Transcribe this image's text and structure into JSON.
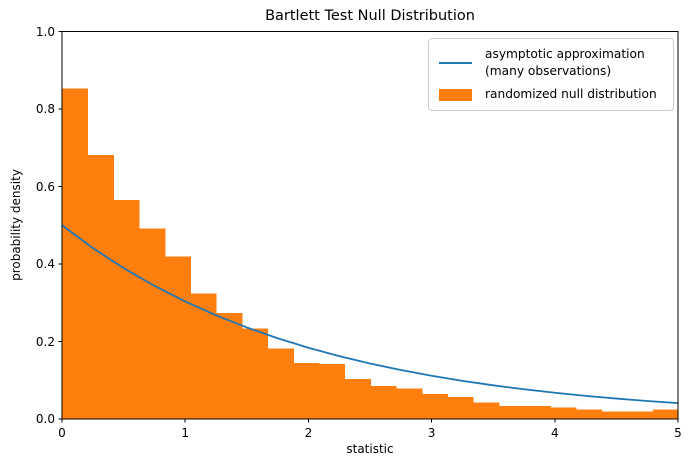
{
  "figure": {
    "title": "Bartlett Test Null Distribution",
    "xlabel": "statistic",
    "ylabel": "probability density"
  },
  "legend": {
    "position": "upper right",
    "items": [
      {
        "label": "asymptotic approximation\n(many observations)",
        "swatch": "line",
        "color": "#1f77b4"
      },
      {
        "label": "randomized null distribution",
        "swatch": "patch",
        "color": "#ff7f0e"
      }
    ]
  },
  "colors": {
    "line": "#1f77b4",
    "bars": "#ff7f0e",
    "axes": "#000000",
    "legend_border": "#cccccc",
    "background": "#ffffff"
  },
  "chart_data": {
    "type": "histogram_with_line",
    "title": "Bartlett Test Null Distribution",
    "xlabel": "statistic",
    "ylabel": "probability density",
    "xlim": [
      0,
      5
    ],
    "ylim": [
      0,
      1
    ],
    "x_ticks": [
      0,
      1,
      2,
      3,
      4,
      5
    ],
    "x_tick_labels": [
      "0",
      "1",
      "2",
      "3",
      "4",
      "5"
    ],
    "y_ticks": [
      0,
      0.2,
      0.4,
      0.6,
      0.8,
      1
    ],
    "y_tick_labels": [
      "0.0",
      "0.2",
      "0.4",
      "0.6",
      "0.8",
      "1.0"
    ],
    "grid": false,
    "legend_position": "upper right",
    "series": [
      {
        "name": "asymptotic approximation (many observations)",
        "type": "line",
        "color": "#1f77b4",
        "x": [
          0,
          0.25,
          0.5,
          0.75,
          1.0,
          1.25,
          1.5,
          1.75,
          2.0,
          2.25,
          2.5,
          2.75,
          3.0,
          3.25,
          3.5,
          3.75,
          4.0,
          4.25,
          4.5,
          4.75,
          5.0
        ],
        "y": [
          0.5,
          0.4412,
          0.3894,
          0.3436,
          0.3033,
          0.2676,
          0.2362,
          0.2084,
          0.1839,
          0.1623,
          0.1433,
          0.1264,
          0.1116,
          0.0985,
          0.0869,
          0.0767,
          0.0677,
          0.0597,
          0.0527,
          0.0465,
          0.041
        ]
      },
      {
        "name": "randomized null distribution",
        "type": "histogram",
        "color": "#ff7f0e",
        "bin_start": 0,
        "bin_width": 0.2086,
        "densities": [
          0.853,
          0.681,
          0.565,
          0.492,
          0.419,
          0.324,
          0.274,
          0.234,
          0.182,
          0.145,
          0.142,
          0.103,
          0.085,
          0.079,
          0.064,
          0.057,
          0.042,
          0.034,
          0.034,
          0.03,
          0.025,
          0.019,
          0.019,
          0.024
        ]
      }
    ]
  }
}
